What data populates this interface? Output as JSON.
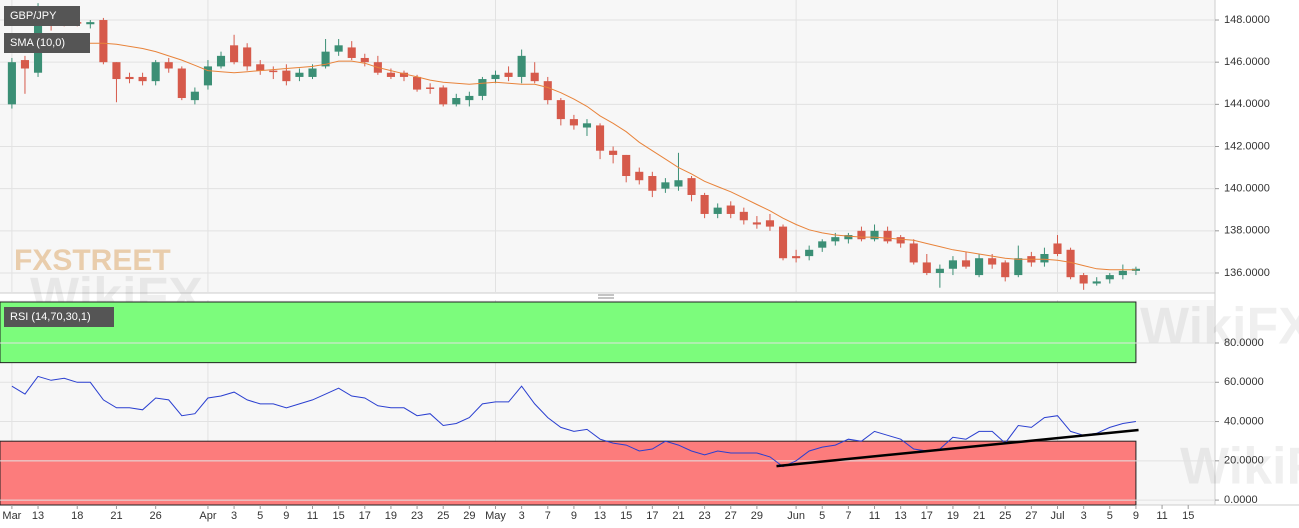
{
  "chart_data": [
    {
      "type": "candlestick",
      "title": "GBP/JPY",
      "x": [
        0,
        1,
        2,
        3,
        4,
        5,
        6,
        7,
        8,
        9,
        10,
        11,
        12,
        13,
        14,
        15,
        16,
        17,
        18,
        19,
        20,
        21,
        22,
        23,
        24,
        25,
        26,
        27,
        28,
        29,
        30,
        31,
        32,
        33,
        34,
        35,
        36,
        37,
        38,
        39,
        40,
        41,
        42,
        43,
        44,
        45,
        46,
        47,
        48,
        49,
        50,
        51,
        52,
        53,
        54,
        55,
        56,
        57,
        58,
        59,
        60,
        61,
        62,
        63,
        64,
        65,
        66,
        67,
        68,
        69,
        70,
        71,
        72,
        73,
        74,
        75,
        76,
        77,
        78,
        79,
        80,
        81,
        82,
        83,
        84,
        85,
        86
      ],
      "open": [
        144.0,
        146.1,
        145.5,
        148.2,
        148.0,
        147.9,
        147.8,
        148.0,
        146.0,
        145.3,
        145.3,
        145.1,
        146.0,
        145.7,
        144.2,
        144.9,
        145.8,
        146.8,
        146.7,
        145.9,
        145.6,
        145.6,
        145.3,
        145.3,
        145.8,
        146.5,
        146.7,
        146.2,
        146.0,
        145.5,
        145.5,
        145.3,
        144.8,
        144.8,
        144.0,
        144.2,
        144.4,
        145.2,
        145.5,
        145.3,
        145.5,
        145.1,
        144.2,
        143.3,
        142.9,
        143.0,
        141.8,
        141.6,
        140.8,
        140.6,
        140.0,
        140.1,
        140.5,
        139.7,
        138.8,
        139.2,
        138.9,
        138.4,
        138.5,
        138.2,
        136.8,
        136.8,
        137.2,
        137.5,
        137.6,
        138.0,
        137.6,
        138.0,
        137.7,
        137.4,
        136.5,
        136.0,
        136.2,
        136.6,
        135.9,
        136.7,
        136.5,
        135.9,
        136.8,
        136.5,
        137.4,
        137.1,
        135.9,
        135.5,
        135.7,
        135.9,
        136.1
      ],
      "high": [
        146.2,
        146.3,
        148.8,
        148.6,
        148.2,
        148.1,
        148.0,
        148.1,
        146.0,
        145.5,
        145.5,
        146.1,
        146.2,
        145.8,
        144.8,
        146.1,
        146.5,
        147.3,
        146.9,
        146.1,
        145.8,
        145.9,
        145.7,
        145.9,
        147.1,
        147.1,
        147.0,
        146.4,
        146.3,
        145.7,
        145.6,
        145.4,
        145.0,
        144.9,
        144.5,
        144.6,
        145.3,
        145.6,
        145.8,
        146.6,
        146.0,
        145.3,
        144.3,
        143.5,
        143.3,
        143.1,
        142.0,
        141.6,
        141.0,
        140.8,
        140.5,
        141.7,
        140.6,
        139.8,
        139.3,
        139.4,
        139.1,
        138.7,
        138.8,
        138.3,
        137.1,
        137.3,
        137.6,
        137.9,
        137.9,
        138.2,
        138.3,
        138.2,
        137.8,
        137.6,
        136.9,
        136.4,
        136.8,
        137.0,
        136.9,
        136.9,
        136.6,
        137.3,
        137.0,
        137.2,
        137.8,
        137.2,
        136.0,
        135.8,
        136.0,
        136.4,
        136.3
      ],
      "low": [
        143.8,
        144.5,
        145.3,
        147.5,
        147.7,
        147.7,
        147.6,
        145.9,
        144.1,
        145.0,
        144.9,
        144.9,
        145.5,
        144.2,
        144.0,
        144.7,
        145.7,
        145.9,
        145.6,
        145.4,
        145.2,
        144.9,
        145.1,
        145.2,
        145.7,
        146.3,
        146.1,
        145.8,
        145.4,
        145.2,
        145.1,
        144.6,
        144.5,
        143.9,
        143.9,
        143.9,
        144.2,
        145.0,
        145.1,
        145.0,
        145.0,
        144.0,
        143.0,
        142.8,
        142.5,
        141.4,
        141.2,
        140.3,
        140.2,
        139.6,
        139.8,
        139.9,
        139.4,
        138.6,
        138.6,
        138.6,
        138.3,
        138.1,
        138.0,
        136.6,
        136.5,
        136.6,
        137.0,
        137.3,
        137.4,
        137.5,
        137.5,
        137.4,
        137.2,
        136.4,
        135.9,
        135.3,
        135.9,
        136.2,
        135.8,
        136.2,
        135.6,
        135.8,
        136.3,
        136.3,
        136.8,
        135.7,
        135.2,
        135.4,
        135.5,
        135.7,
        135.9
      ],
      "close": [
        146.0,
        145.7,
        148.2,
        147.9,
        147.9,
        147.85,
        147.9,
        146.0,
        145.2,
        145.2,
        145.1,
        146.0,
        145.7,
        144.3,
        144.6,
        145.8,
        146.3,
        146.0,
        145.8,
        145.6,
        145.55,
        145.1,
        145.5,
        145.7,
        146.5,
        146.8,
        146.2,
        146.0,
        145.5,
        145.3,
        145.3,
        144.7,
        144.75,
        144.0,
        144.3,
        144.4,
        145.2,
        145.4,
        145.3,
        146.3,
        145.1,
        144.2,
        143.3,
        143.0,
        143.1,
        141.8,
        141.6,
        140.6,
        140.4,
        139.9,
        140.3,
        140.4,
        139.7,
        138.8,
        139.1,
        138.8,
        138.5,
        138.3,
        138.2,
        136.7,
        136.7,
        137.1,
        137.5,
        137.7,
        137.8,
        137.6,
        138.0,
        137.5,
        137.4,
        136.5,
        136.0,
        136.2,
        136.6,
        136.3,
        136.7,
        136.4,
        135.8,
        136.7,
        136.5,
        136.9,
        136.9,
        135.8,
        135.5,
        135.6,
        135.9,
        136.1,
        136.2
      ],
      "up_color": "#3b8f75",
      "down_color": "#d65a4b",
      "overlays": [
        {
          "name": "SMA (10,0)",
          "color": "#e8833a",
          "values": [
            147.05,
            147.05,
            147.05,
            147.0,
            147.0,
            146.95,
            146.9,
            146.9,
            146.85,
            146.75,
            146.65,
            146.5,
            146.3,
            146.1,
            145.85,
            145.6,
            145.55,
            145.5,
            145.55,
            145.6,
            145.65,
            145.7,
            145.75,
            145.8,
            145.9,
            146.05,
            146.05,
            145.95,
            145.75,
            145.6,
            145.45,
            145.3,
            145.15,
            145.05,
            145.0,
            144.95,
            145.0,
            145.05,
            145.0,
            144.95,
            144.95,
            144.8,
            144.55,
            144.25,
            143.9,
            143.45,
            143.1,
            142.7,
            142.2,
            141.8,
            141.4,
            141.0,
            140.7,
            140.35,
            140.1,
            139.85,
            139.55,
            139.25,
            138.95,
            138.6,
            138.3,
            138.05,
            137.9,
            137.8,
            137.75,
            137.7,
            137.7,
            137.65,
            137.6,
            137.55,
            137.4,
            137.25,
            137.1,
            137.0,
            136.9,
            136.8,
            136.7,
            136.65,
            136.65,
            136.65,
            136.6,
            136.5,
            136.35,
            136.2,
            136.15,
            136.15,
            136.15
          ]
        }
      ],
      "xlim": [
        -0.91,
        92.05
      ],
      "xticks": [
        {
          "value": 0,
          "label": "Mar"
        },
        {
          "value": 2,
          "label": "13"
        },
        {
          "value": 5,
          "label": "18"
        },
        {
          "value": 8,
          "label": "21"
        },
        {
          "value": 11,
          "label": "26"
        },
        {
          "value": 15,
          "label": "Apr"
        },
        {
          "value": 17,
          "label": "3"
        },
        {
          "value": 19,
          "label": "5"
        },
        {
          "value": 21,
          "label": "9"
        },
        {
          "value": 23,
          "label": "11"
        },
        {
          "value": 25,
          "label": "15"
        },
        {
          "value": 27,
          "label": "17"
        },
        {
          "value": 29,
          "label": "19"
        },
        {
          "value": 31,
          "label": "23"
        },
        {
          "value": 33,
          "label": "25"
        },
        {
          "value": 35,
          "label": "29"
        },
        {
          "value": 37,
          "label": "May"
        },
        {
          "value": 39,
          "label": "3"
        },
        {
          "value": 41,
          "label": "7"
        },
        {
          "value": 43,
          "label": "9"
        },
        {
          "value": 45,
          "label": "13"
        },
        {
          "value": 47,
          "label": "15"
        },
        {
          "value": 49,
          "label": "17"
        },
        {
          "value": 51,
          "label": "21"
        },
        {
          "value": 53,
          "label": "23"
        },
        {
          "value": 55,
          "label": "27"
        },
        {
          "value": 57,
          "label": "29"
        },
        {
          "value": 60,
          "label": "Jun"
        },
        {
          "value": 62,
          "label": "5"
        },
        {
          "value": 64,
          "label": "7"
        },
        {
          "value": 66,
          "label": "11"
        },
        {
          "value": 68,
          "label": "13"
        },
        {
          "value": 70,
          "label": "17"
        },
        {
          "value": 72,
          "label": "19"
        },
        {
          "value": 74,
          "label": "21"
        },
        {
          "value": 76,
          "label": "25"
        },
        {
          "value": 78,
          "label": "27"
        },
        {
          "value": 80,
          "label": "Jul"
        },
        {
          "value": 82,
          "label": "3"
        },
        {
          "value": 84,
          "label": "5"
        },
        {
          "value": 86,
          "label": "9"
        },
        {
          "value": 88,
          "label": "11"
        },
        {
          "value": 90,
          "label": "15"
        }
      ],
      "ylim": [
        135.05,
        148.95
      ],
      "yticks": [
        {
          "value": 136,
          "label": "136.0000"
        },
        {
          "value": 138,
          "label": "138.0000"
        },
        {
          "value": 140,
          "label": "140.0000"
        },
        {
          "value": 142,
          "label": "142.0000"
        },
        {
          "value": 144,
          "label": "144.0000"
        },
        {
          "value": 146,
          "label": "146.0000"
        },
        {
          "value": 148,
          "label": "148.0000"
        }
      ],
      "grid": true
    },
    {
      "type": "line",
      "title": "RSI (14,70,30,1)",
      "x": [
        0,
        1,
        2,
        3,
        4,
        5,
        6,
        7,
        8,
        9,
        10,
        11,
        12,
        13,
        14,
        15,
        16,
        17,
        18,
        19,
        20,
        21,
        22,
        23,
        24,
        25,
        26,
        27,
        28,
        29,
        30,
        31,
        32,
        33,
        34,
        35,
        36,
        37,
        38,
        39,
        40,
        41,
        42,
        43,
        44,
        45,
        46,
        47,
        48,
        49,
        50,
        51,
        52,
        53,
        54,
        55,
        56,
        57,
        58,
        59,
        60,
        61,
        62,
        63,
        64,
        65,
        66,
        67,
        68,
        69,
        70,
        71,
        72,
        73,
        74,
        75,
        76,
        77,
        78,
        79,
        80,
        81,
        82,
        83,
        84,
        85,
        86
      ],
      "color": "#2a3fd0",
      "values": [
        58,
        54,
        63,
        61,
        62,
        60,
        60,
        51,
        47,
        47,
        46,
        52,
        51,
        43,
        44,
        52,
        53,
        55,
        51,
        49,
        49,
        47,
        49,
        51,
        54,
        57,
        53,
        52,
        48,
        47,
        47,
        43,
        44,
        38,
        39,
        42,
        49,
        50,
        50,
        58,
        49,
        42,
        37,
        35,
        36,
        31,
        29,
        28,
        25,
        26,
        30,
        28,
        25,
        23,
        25,
        24,
        24,
        24,
        22,
        17,
        20,
        25,
        27,
        28,
        31,
        30,
        35,
        33,
        31,
        26,
        25,
        26,
        32,
        31,
        35,
        35,
        29,
        38,
        37,
        42,
        43,
        35,
        33,
        34,
        37,
        39,
        40
      ],
      "upper_band": {
        "value": 70,
        "color": "#7cfc7c"
      },
      "lower_band": {
        "value": 30,
        "color": "#fc7c7c"
      },
      "trendline": {
        "x": [
          58.5,
          86.2
        ],
        "y": [
          17.3,
          35.7
        ],
        "color": "#000000"
      },
      "ylim": [
        -2.5,
        101.9
      ],
      "yticks": [
        {
          "value": 0,
          "label": "0.0000"
        },
        {
          "value": 20,
          "label": "20.0000"
        },
        {
          "value": 40,
          "label": "40.0000"
        },
        {
          "value": 60,
          "label": "60.0000"
        },
        {
          "value": 80,
          "label": "80.0000"
        }
      ],
      "grid": true
    }
  ],
  "watermarks": [
    "FXSTREET",
    "WikiFX"
  ]
}
